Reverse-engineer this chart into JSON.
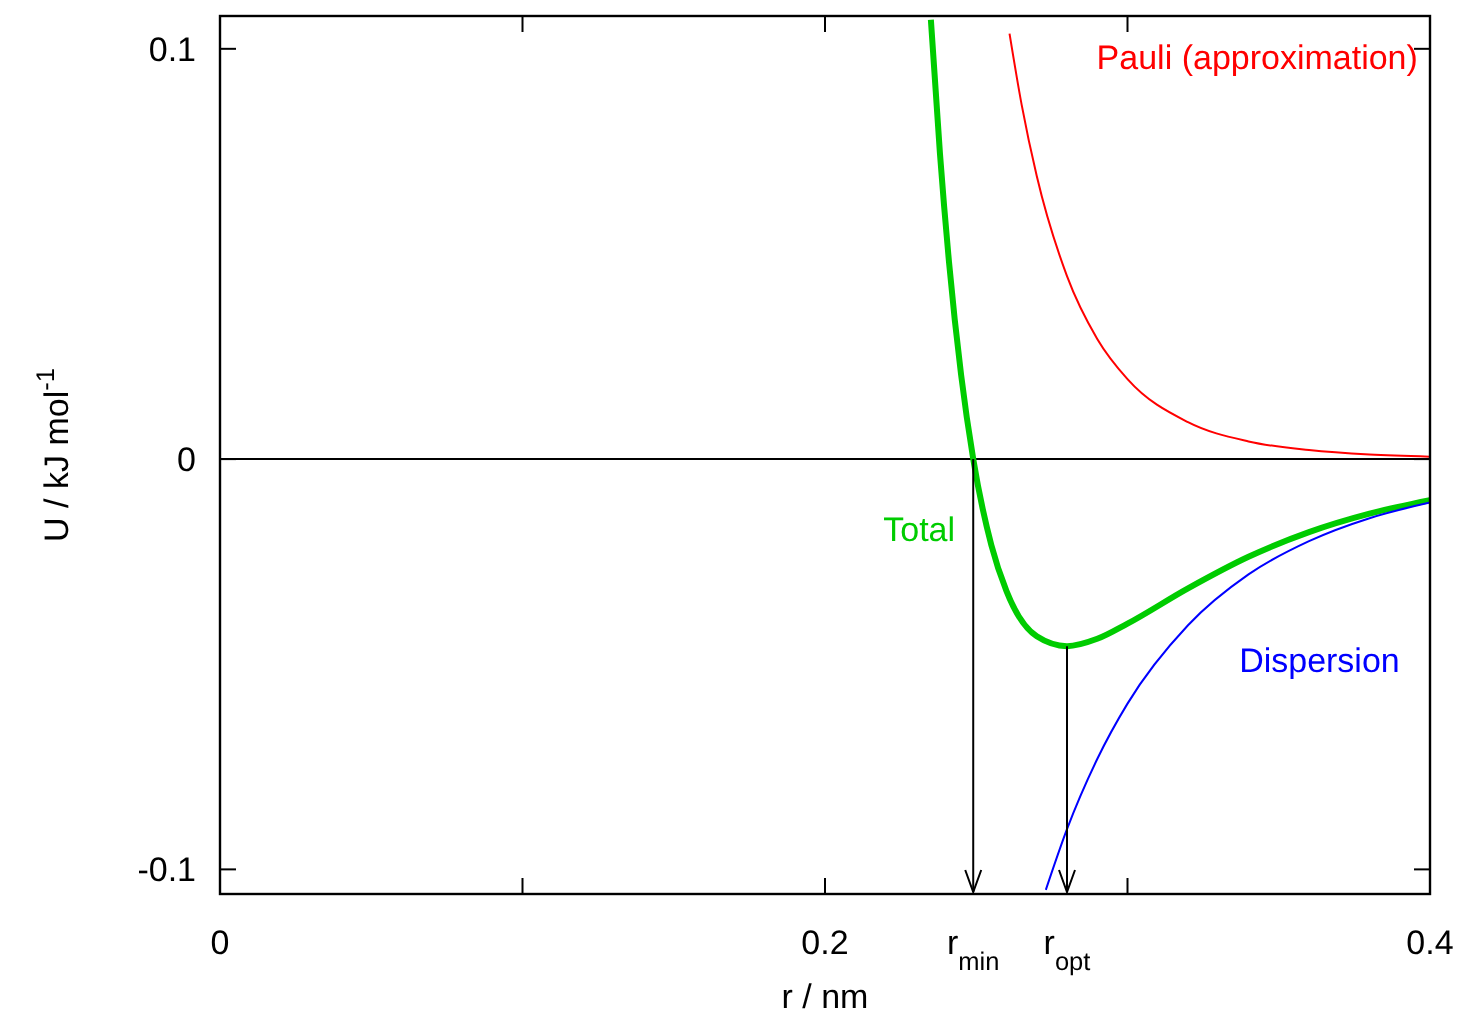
{
  "chart_data": {
    "type": "line",
    "xlabel": "r / nm",
    "ylabel": "U / kJ mol$^{-1}$",
    "xlim": [
      0,
      0.4
    ],
    "ylim": [
      -0.106,
      0.108
    ],
    "xticks": [
      0,
      {
        "value": 0.1,
        "label": null
      },
      0.2,
      {
        "value": 0.249,
        "label": "r$_{min}$"
      },
      {
        "value": 0.28,
        "label": "r$_{opt}$"
      },
      {
        "value": 0.3,
        "label": null
      },
      0.4
    ],
    "yticks": [
      0.1,
      0,
      -0.1
    ],
    "grid": false,
    "marker": "none",
    "line_style": "solid",
    "ref_lines": [
      {
        "axis": "y",
        "value": 0,
        "color": "#000000"
      }
    ],
    "series": [
      {
        "name": "Total",
        "color": "#00cc00",
        "x": [
          0.235,
          0.238,
          0.241,
          0.245,
          0.249,
          0.255,
          0.26,
          0.27,
          0.28,
          0.29,
          0.3,
          0.32,
          0.34,
          0.36,
          0.38,
          0.4
        ],
        "values": [
          0.1071,
          0.0745,
          0.048,
          0.0205,
          0,
          -0.021,
          -0.0322,
          -0.0432,
          -0.0456,
          -0.0438,
          -0.0401,
          -0.0315,
          -0.0238,
          -0.0178,
          -0.0133,
          -0.01
        ]
      },
      {
        "name": "Pauli (approximation)",
        "color": "#ff0000",
        "x": [
          0.261,
          0.265,
          0.27,
          0.28,
          0.29,
          0.3,
          0.32,
          0.34,
          0.36,
          0.38,
          0.4
        ],
        "values": [
          0.1037,
          0.0864,
          0.069,
          0.0446,
          0.0293,
          0.0195,
          0.009,
          0.0043,
          0.0022,
          0.0011,
          0.0006
        ]
      },
      {
        "name": "Dispersion",
        "color": "#0000ff",
        "x": [
          0.273,
          0.28,
          0.29,
          0.3,
          0.32,
          0.34,
          0.36,
          0.38,
          0.4
        ],
        "values": [
          -0.105,
          -0.0902,
          -0.0731,
          -0.0596,
          -0.0405,
          -0.0281,
          -0.02,
          -0.0144,
          -0.0106
        ]
      }
    ]
  }
}
